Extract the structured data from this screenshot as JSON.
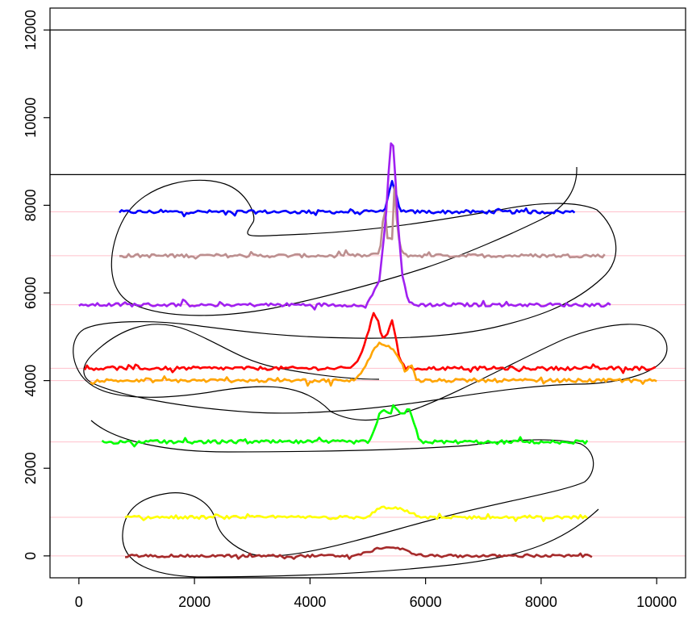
{
  "chart_data": {
    "type": "line",
    "title": "",
    "xlabel": "",
    "ylabel": "",
    "xlim": [
      -500,
      10500
    ],
    "ylim": [
      -500,
      12500
    ],
    "grid": false,
    "x_ticks": [
      "0",
      "2000",
      "4000",
      "6000",
      "8000",
      "10000"
    ],
    "y_ticks": [
      "0",
      "2000",
      "4000",
      "6000",
      "8000",
      "10000",
      "12000"
    ],
    "x_tick_values": [
      0,
      2000,
      4000,
      6000,
      8000,
      10000
    ],
    "y_tick_values": [
      0,
      2000,
      4000,
      6000,
      8000,
      10000,
      12000
    ],
    "horizontal_lines": [
      {
        "y": 12000,
        "color": "#000000"
      },
      {
        "y": 8700,
        "color": "#000000"
      }
    ],
    "reference_lines": {
      "color": "#FFC0CB",
      "y": [
        7850,
        6850,
        5730,
        4280,
        4000,
        2600,
        880,
        0
      ]
    },
    "series": [
      {
        "color": "#0000FF",
        "baseline": 7850,
        "noise": 40,
        "x": [
          700,
          8600
        ],
        "peak": [
          [
            5000,
            7850
          ],
          [
            5200,
            7850
          ],
          [
            5300,
            7900
          ],
          [
            5350,
            8200
          ],
          [
            5420,
            8550
          ],
          [
            5480,
            8300
          ],
          [
            5550,
            7900
          ],
          [
            5700,
            7850
          ]
        ]
      },
      {
        "color": "#BC8F8F",
        "baseline": 6850,
        "noise": 40,
        "x": [
          700,
          9100
        ],
        "peak": [
          [
            5000,
            6850
          ],
          [
            5200,
            6900
          ],
          [
            5250,
            7400
          ],
          [
            5280,
            8000
          ],
          [
            5320,
            7700
          ],
          [
            5340,
            7250
          ],
          [
            5420,
            7250
          ],
          [
            5460,
            8400
          ],
          [
            5520,
            7300
          ],
          [
            5600,
            6900
          ],
          [
            5700,
            6850
          ]
        ]
      },
      {
        "color": "#A020F0",
        "baseline": 5730,
        "noise": 40,
        "x": [
          0,
          9200
        ],
        "peak": [
          [
            4850,
            5730
          ],
          [
            4950,
            5650
          ],
          [
            5050,
            5900
          ],
          [
            5200,
            6300
          ],
          [
            5280,
            7300
          ],
          [
            5330,
            8000
          ],
          [
            5380,
            9200
          ],
          [
            5420,
            9650
          ],
          [
            5460,
            9000
          ],
          [
            5520,
            7600
          ],
          [
            5600,
            6400
          ],
          [
            5700,
            5800
          ],
          [
            5800,
            5730
          ]
        ]
      },
      {
        "color": "#FF0000",
        "baseline": 4280,
        "noise": 40,
        "x": [
          100,
          10000
        ],
        "peak": [
          [
            4700,
            4300
          ],
          [
            4850,
            4500
          ],
          [
            4950,
            4850
          ],
          [
            5030,
            5200
          ],
          [
            5100,
            5550
          ],
          [
            5180,
            5350
          ],
          [
            5250,
            4950
          ],
          [
            5330,
            5050
          ],
          [
            5380,
            5250
          ],
          [
            5420,
            5400
          ],
          [
            5480,
            5000
          ],
          [
            5550,
            4500
          ],
          [
            5650,
            4280
          ]
        ]
      },
      {
        "color": "#FFA500",
        "baseline": 4000,
        "noise": 40,
        "x": [
          200,
          10000
        ],
        "peak": [
          [
            4800,
            4050
          ],
          [
            4900,
            4200
          ],
          [
            5000,
            4450
          ],
          [
            5100,
            4700
          ],
          [
            5200,
            4850
          ],
          [
            5350,
            4800
          ],
          [
            5450,
            4700
          ],
          [
            5550,
            4500
          ],
          [
            5650,
            4200
          ],
          [
            5750,
            4400
          ],
          [
            5850,
            4000
          ]
        ]
      },
      {
        "color": "#00FF00",
        "baseline": 2600,
        "noise": 40,
        "x": [
          400,
          8800
        ],
        "peak": [
          [
            5000,
            2600
          ],
          [
            5100,
            2800
          ],
          [
            5200,
            3250
          ],
          [
            5300,
            3350
          ],
          [
            5380,
            3200
          ],
          [
            5450,
            3450
          ],
          [
            5530,
            3300
          ],
          [
            5620,
            3200
          ],
          [
            5700,
            3400
          ],
          [
            5780,
            3100
          ],
          [
            5880,
            2700
          ],
          [
            5950,
            2600
          ]
        ]
      },
      {
        "color": "#FFFF00",
        "baseline": 880,
        "noise": 35,
        "x": [
          800,
          8800
        ],
        "peak": [
          [
            5000,
            900
          ],
          [
            5150,
            1050
          ],
          [
            5250,
            1130
          ],
          [
            5400,
            1080
          ],
          [
            5550,
            1100
          ],
          [
            5700,
            1000
          ],
          [
            5900,
            900
          ],
          [
            6000,
            880
          ]
        ]
      },
      {
        "color": "#A52A2A",
        "baseline": 0,
        "noise": 30,
        "x": [
          800,
          8900
        ],
        "peak": [
          [
            4800,
            20
          ],
          [
            5000,
            80
          ],
          [
            5200,
            180
          ],
          [
            5400,
            200
          ],
          [
            5600,
            150
          ],
          [
            5800,
            50
          ],
          [
            6000,
            0
          ]
        ]
      }
    ],
    "curve": {
      "color": "#000000"
    }
  }
}
